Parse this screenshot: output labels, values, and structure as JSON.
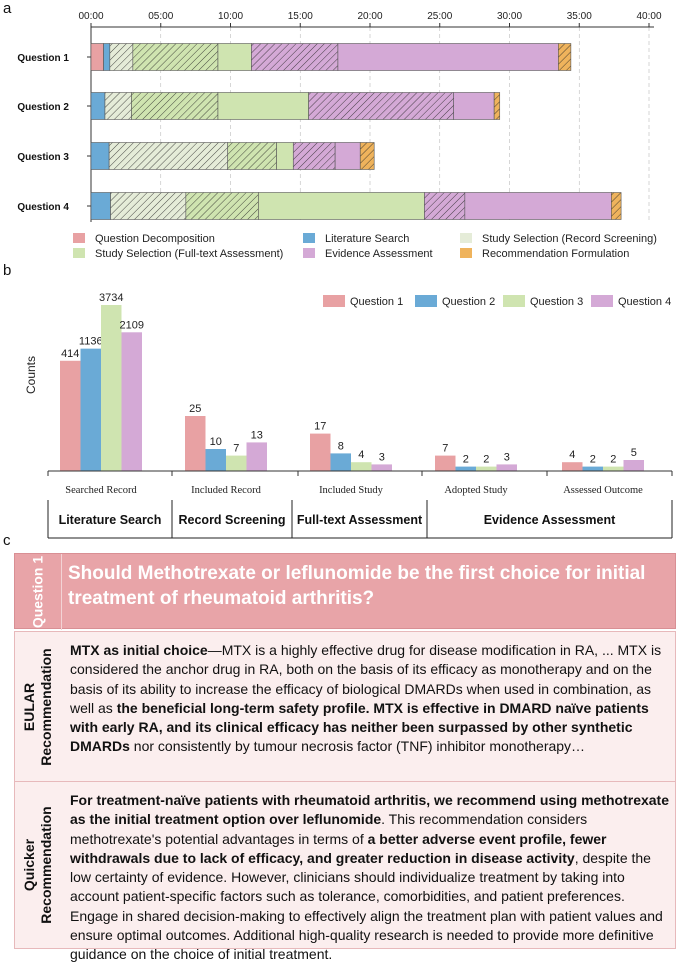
{
  "labels": {
    "a": "a",
    "b": "b",
    "c": "c"
  },
  "colors": {
    "decomposition": "#e8a1a3",
    "search": "#6aaad6",
    "screening": "#e5ecd8",
    "fulltext": "#cfe4b0",
    "evidence": "#d4a9d6",
    "recommendation": "#efb35c",
    "question_bg": "#e8a4a8",
    "rec_bg": "#fbeeee"
  },
  "chart_data": [
    {
      "type": "bar",
      "orientation": "horizontal-stacked",
      "title": "",
      "x_ticks": [
        "00:00",
        "05:00",
        "10:00",
        "15:00",
        "20:00",
        "25:00",
        "30:00",
        "35:00",
        "40:00"
      ],
      "x_unit": "minutes",
      "xlim": [
        0,
        40
      ],
      "categories": [
        "Question 1",
        "Question 2",
        "Question 3",
        "Question 4"
      ],
      "stage_hatched": [
        false,
        false,
        true,
        true,
        false,
        true,
        false,
        true,
        false,
        true,
        false,
        true
      ],
      "stages": [
        "Question Decomposition",
        "Literature Search",
        "Study Selection (Record Screening)",
        "Study Selection (Full-text Assessment)",
        "Evidence Assessment",
        "Recommendation Formulation"
      ],
      "stage_colors": [
        "decomposition",
        "search",
        "screening",
        "fulltext",
        "evidence",
        "recommendation"
      ],
      "bars": [
        {
          "name": "Question 1",
          "segments": [
            {
              "stage": "Question Decomposition",
              "start": 0,
              "end": 0.9,
              "hatched": false
            },
            {
              "stage": "Literature Search",
              "start": 0.9,
              "end": 1.35,
              "hatched": false
            },
            {
              "stage": "Study Selection (Record Screening)",
              "start": 1.35,
              "end": 3.0,
              "hatched": true
            },
            {
              "stage": "Study Selection (Full-text Assessment)",
              "start": 3.0,
              "end": 9.1,
              "hatched": true
            },
            {
              "stage": "Study Selection (Full-text Assessment)",
              "start": 9.1,
              "end": 11.5,
              "hatched": false
            },
            {
              "stage": "Evidence Assessment",
              "start": 11.5,
              "end": 17.7,
              "hatched": true
            },
            {
              "stage": "Evidence Assessment",
              "start": 17.7,
              "end": 33.5,
              "hatched": false
            },
            {
              "stage": "Recommendation Formulation",
              "start": 33.5,
              "end": 34.4,
              "hatched": true
            }
          ]
        },
        {
          "name": "Question 2",
          "segments": [
            {
              "stage": "Literature Search",
              "start": 0,
              "end": 1.0,
              "hatched": false
            },
            {
              "stage": "Study Selection (Record Screening)",
              "start": 1.0,
              "end": 2.9,
              "hatched": true
            },
            {
              "stage": "Study Selection (Full-text Assessment)",
              "start": 2.9,
              "end": 9.1,
              "hatched": true
            },
            {
              "stage": "Study Selection (Full-text Assessment)",
              "start": 9.1,
              "end": 15.6,
              "hatched": false
            },
            {
              "stage": "Evidence Assessment",
              "start": 15.6,
              "end": 26.0,
              "hatched": true
            },
            {
              "stage": "Evidence Assessment",
              "start": 26.0,
              "end": 28.9,
              "hatched": false
            },
            {
              "stage": "Recommendation Formulation",
              "start": 28.9,
              "end": 29.3,
              "hatched": true
            }
          ]
        },
        {
          "name": "Question 3",
          "segments": [
            {
              "stage": "Literature Search",
              "start": 0,
              "end": 1.3,
              "hatched": false
            },
            {
              "stage": "Study Selection (Record Screening)",
              "start": 1.3,
              "end": 9.8,
              "hatched": true
            },
            {
              "stage": "Study Selection (Full-text Assessment)",
              "start": 9.8,
              "end": 13.3,
              "hatched": true
            },
            {
              "stage": "Study Selection (Full-text Assessment)",
              "start": 13.3,
              "end": 14.5,
              "hatched": false
            },
            {
              "stage": "Evidence Assessment",
              "start": 14.5,
              "end": 17.5,
              "hatched": true
            },
            {
              "stage": "Evidence Assessment",
              "start": 17.5,
              "end": 19.3,
              "hatched": false
            },
            {
              "stage": "Recommendation Formulation",
              "start": 19.3,
              "end": 20.3,
              "hatched": true
            }
          ]
        },
        {
          "name": "Question 4",
          "segments": [
            {
              "stage": "Literature Search",
              "start": 0,
              "end": 1.4,
              "hatched": false
            },
            {
              "stage": "Study Selection (Record Screening)",
              "start": 1.4,
              "end": 6.8,
              "hatched": true
            },
            {
              "stage": "Study Selection (Full-text Assessment)",
              "start": 6.8,
              "end": 12.0,
              "hatched": true
            },
            {
              "stage": "Study Selection (Full-text Assessment)",
              "start": 12.0,
              "end": 23.9,
              "hatched": false
            },
            {
              "stage": "Evidence Assessment",
              "start": 23.9,
              "end": 26.8,
              "hatched": true
            },
            {
              "stage": "Evidence Assessment",
              "start": 26.8,
              "end": 37.3,
              "hatched": false
            },
            {
              "stage": "Recommendation Formulation",
              "start": 37.3,
              "end": 38.0,
              "hatched": true
            }
          ]
        }
      ],
      "legend": [
        {
          "label": "Question Decomposition",
          "color": "decomposition"
        },
        {
          "label": "Literature Search",
          "color": "search"
        },
        {
          "label": "Study Selection (Record Screening)",
          "color": "screening"
        },
        {
          "label": "Study Selection (Full-text Assessment)",
          "color": "fulltext"
        },
        {
          "label": "Evidence Assessment",
          "color": "evidence"
        },
        {
          "label": "Recommendation Formulation",
          "color": "recommendation"
        }
      ]
    },
    {
      "type": "bar",
      "orientation": "vertical-grouped",
      "ylabel": "Counts",
      "categories": [
        "Searched Record",
        "Included Record",
        "Included Study",
        "Adopted Study",
        "Assessed Outcome"
      ],
      "series": [
        {
          "name": "Question 1",
          "color": "decomposition",
          "values": [
            414,
            25,
            17,
            7,
            4
          ]
        },
        {
          "name": "Question 2",
          "color": "search",
          "values": [
            1136,
            10,
            8,
            2,
            2
          ]
        },
        {
          "name": "Question 3",
          "color": "fulltext",
          "values": [
            3734,
            7,
            4,
            2,
            2
          ]
        },
        {
          "name": "Question 4",
          "color": "evidence",
          "values": [
            2109,
            13,
            3,
            3,
            5
          ]
        }
      ],
      "phases": [
        "Literature Search",
        "Record Screening",
        "Full-text Assessment",
        "Evidence Assessment"
      ],
      "legend_position": "top-right",
      "axis_break": true
    }
  ],
  "question": {
    "label": "Question 1",
    "text": "Should Methotrexate or leflunomide be the first choice for initial treatment of rheumatoid arthritis?"
  },
  "eular": {
    "label_line1": "EULAR",
    "label_line2": "Recommendation",
    "p1_bold": "MTX as initial choice",
    "p2": "—MTX is a highly effective drug for disease modification in RA, ... MTX is considered the anchor drug in RA, both on the basis of its efficacy as monotherapy and on the basis of its ability to increase the efficacy of biological DMARDs when used in combination, as well as ",
    "p3_bold": "the beneficial long-term safety profile. MTX is effective in DMARD naïve patients with early RA, and its clinical efficacy has neither been surpassed by other synthetic DMARDs",
    "p4": " nor consistently by tumour necrosis factor (TNF) inhibitor monotherapy…"
  },
  "quicker": {
    "label_line1": "Quicker",
    "label_line2": "Recommendation",
    "p1_bold": "For treatment-naïve patients with rheumatoid arthritis, we recommend using methotrexate as the initial treatment option over leflunomide",
    "p2": ". This recommendation considers methotrexate's potential advantages in terms of ",
    "p3_bold": "a better adverse event profile, fewer withdrawals due to lack of efficacy, and greater reduction in disease activity",
    "p4": ", despite the low certainty of evidence. However, clinicians should individualize treatment by taking into account patient-specific factors such as tolerance, comorbidities, and patient preferences. Engage in shared decision-making to effectively align the treatment plan with patient values and ensure optimal outcomes. Additional high-quality research is needed to provide more definitive guidance on the choice of initial treatment."
  }
}
